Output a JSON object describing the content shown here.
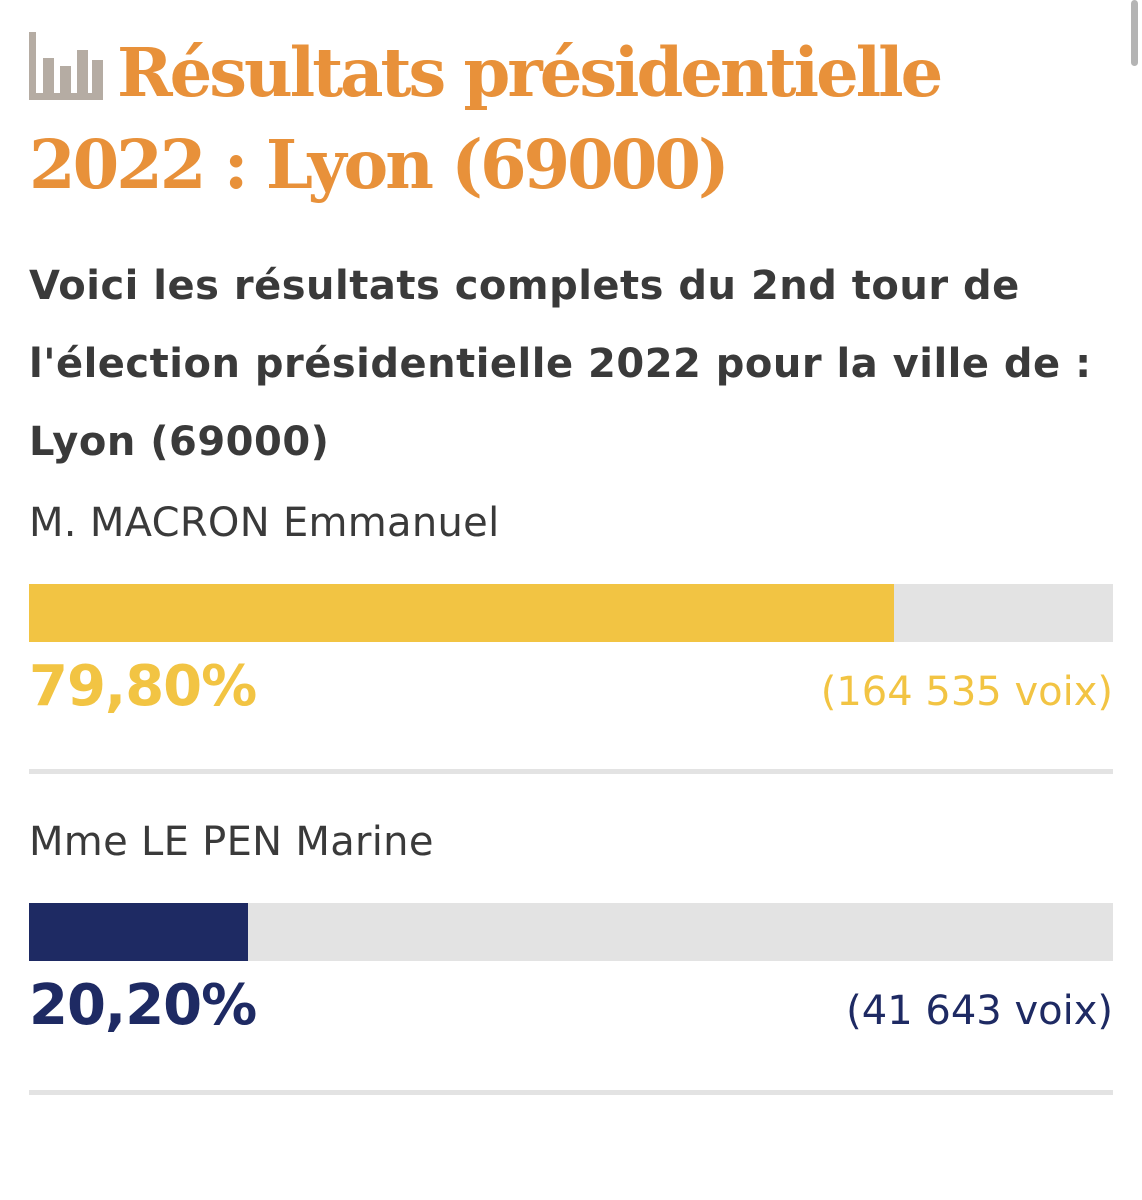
{
  "page": {
    "title": "Résultats présidentielle 2022 : Lyon (69000)",
    "subtitle": "Voici les résultats complets du 2nd tour de l'élection présidentielle 2022 pour la ville de : Lyon (69000)"
  },
  "icons": {
    "title_icon": "bar-chart-icon"
  },
  "colors": {
    "title": "#e8913a",
    "track": "#e3e3e3",
    "text": "#3a3a3a"
  },
  "candidates": [
    {
      "name": "M. MACRON Emmanuel",
      "percent_label": "79,80%",
      "percent": 79.8,
      "votes_label": "(164 535 voix)",
      "color": "#f2c443"
    },
    {
      "name": "Mme LE PEN Marine",
      "percent_label": "20,20%",
      "percent": 20.2,
      "votes_label": "(41 643 voix)",
      "color": "#1e2a63"
    }
  ]
}
